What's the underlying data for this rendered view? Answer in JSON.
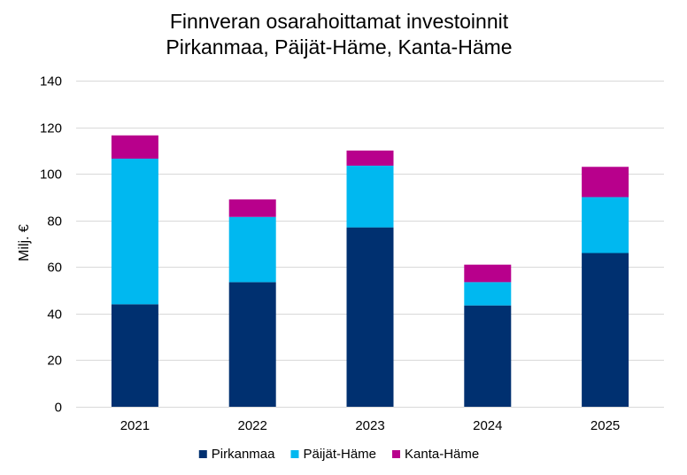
{
  "chart_data": {
    "type": "bar",
    "stacked": true,
    "title_lines": [
      "Finnveran osarahoittamat investoinnit",
      "Pirkanmaa, Päijät-Häme, Kanta-Häme"
    ],
    "xlabel": "",
    "ylabel": "Milj. €",
    "ylim": [
      0,
      140
    ],
    "yticks": [
      0,
      20,
      40,
      60,
      80,
      100,
      120,
      140
    ],
    "grid": true,
    "legend_position": "bottom",
    "categories": [
      "2021",
      "2022",
      "2023",
      "2024",
      "2025"
    ],
    "series": [
      {
        "name": "Pirkanmaa",
        "color": "#003070",
        "values": [
          44,
          53.5,
          77,
          43.5,
          66
        ]
      },
      {
        "name": "Päijät-Häme",
        "color": "#00B8F0",
        "values": [
          62.5,
          28,
          26.5,
          10,
          24
        ]
      },
      {
        "name": "Kanta-Häme",
        "color": "#B8008C",
        "values": [
          10,
          7.5,
          6.5,
          7.5,
          13
        ]
      }
    ]
  }
}
